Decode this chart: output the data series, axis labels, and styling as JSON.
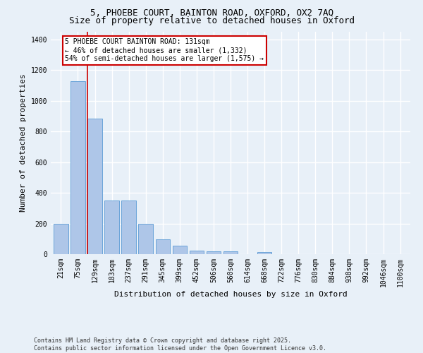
{
  "title_line1": "5, PHOEBE COURT, BAINTON ROAD, OXFORD, OX2 7AQ",
  "title_line2": "Size of property relative to detached houses in Oxford",
  "xlabel": "Distribution of detached houses by size in Oxford",
  "ylabel": "Number of detached properties",
  "bar_color": "#aec6e8",
  "bar_edge_color": "#5b9bd5",
  "background_color": "#e8f0f8",
  "grid_color": "#ffffff",
  "categories": [
    "21sqm",
    "75sqm",
    "129sqm",
    "183sqm",
    "237sqm",
    "291sqm",
    "345sqm",
    "399sqm",
    "452sqm",
    "506sqm",
    "560sqm",
    "614sqm",
    "668sqm",
    "722sqm",
    "776sqm",
    "830sqm",
    "884sqm",
    "938sqm",
    "992sqm",
    "1046sqm",
    "1100sqm"
  ],
  "values": [
    197,
    1127,
    886,
    352,
    352,
    196,
    96,
    57,
    22,
    20,
    17,
    0,
    15,
    0,
    0,
    0,
    0,
    0,
    0,
    0,
    0
  ],
  "ylim": [
    0,
    1450
  ],
  "yticks": [
    0,
    200,
    400,
    600,
    800,
    1000,
    1200,
    1400
  ],
  "annotation_text": "5 PHOEBE COURT BAINTON ROAD: 131sqm\n← 46% of detached houses are smaller (1,332)\n54% of semi-detached houses are larger (1,575) →",
  "annotation_box_color": "#ffffff",
  "annotation_border_color": "#cc0000",
  "vline_color": "#cc0000",
  "footer_text": "Contains HM Land Registry data © Crown copyright and database right 2025.\nContains public sector information licensed under the Open Government Licence v3.0.",
  "title_fontsize": 9,
  "axis_label_fontsize": 8,
  "tick_fontsize": 7,
  "annotation_fontsize": 7,
  "footer_fontsize": 6
}
